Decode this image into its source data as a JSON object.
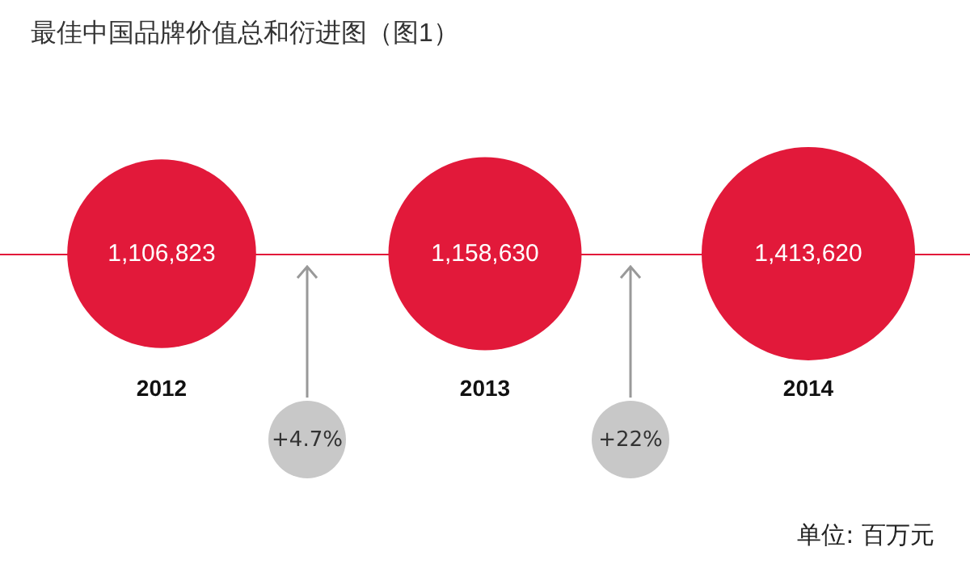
{
  "chart_data": {
    "type": "other",
    "title": "最佳中国品牌价值总和衍进图（图1）",
    "categories": [
      "2012",
      "2013",
      "2014"
    ],
    "values": [
      1106823,
      1158630,
      1413620
    ],
    "color": "#e2193a",
    "value_labels": [
      "1,106,823",
      "1,158,630",
      "1,413,620"
    ],
    "annotations": [
      "+4.7%",
      "+22%",
      "单位: 百万元"
    ]
  }
}
